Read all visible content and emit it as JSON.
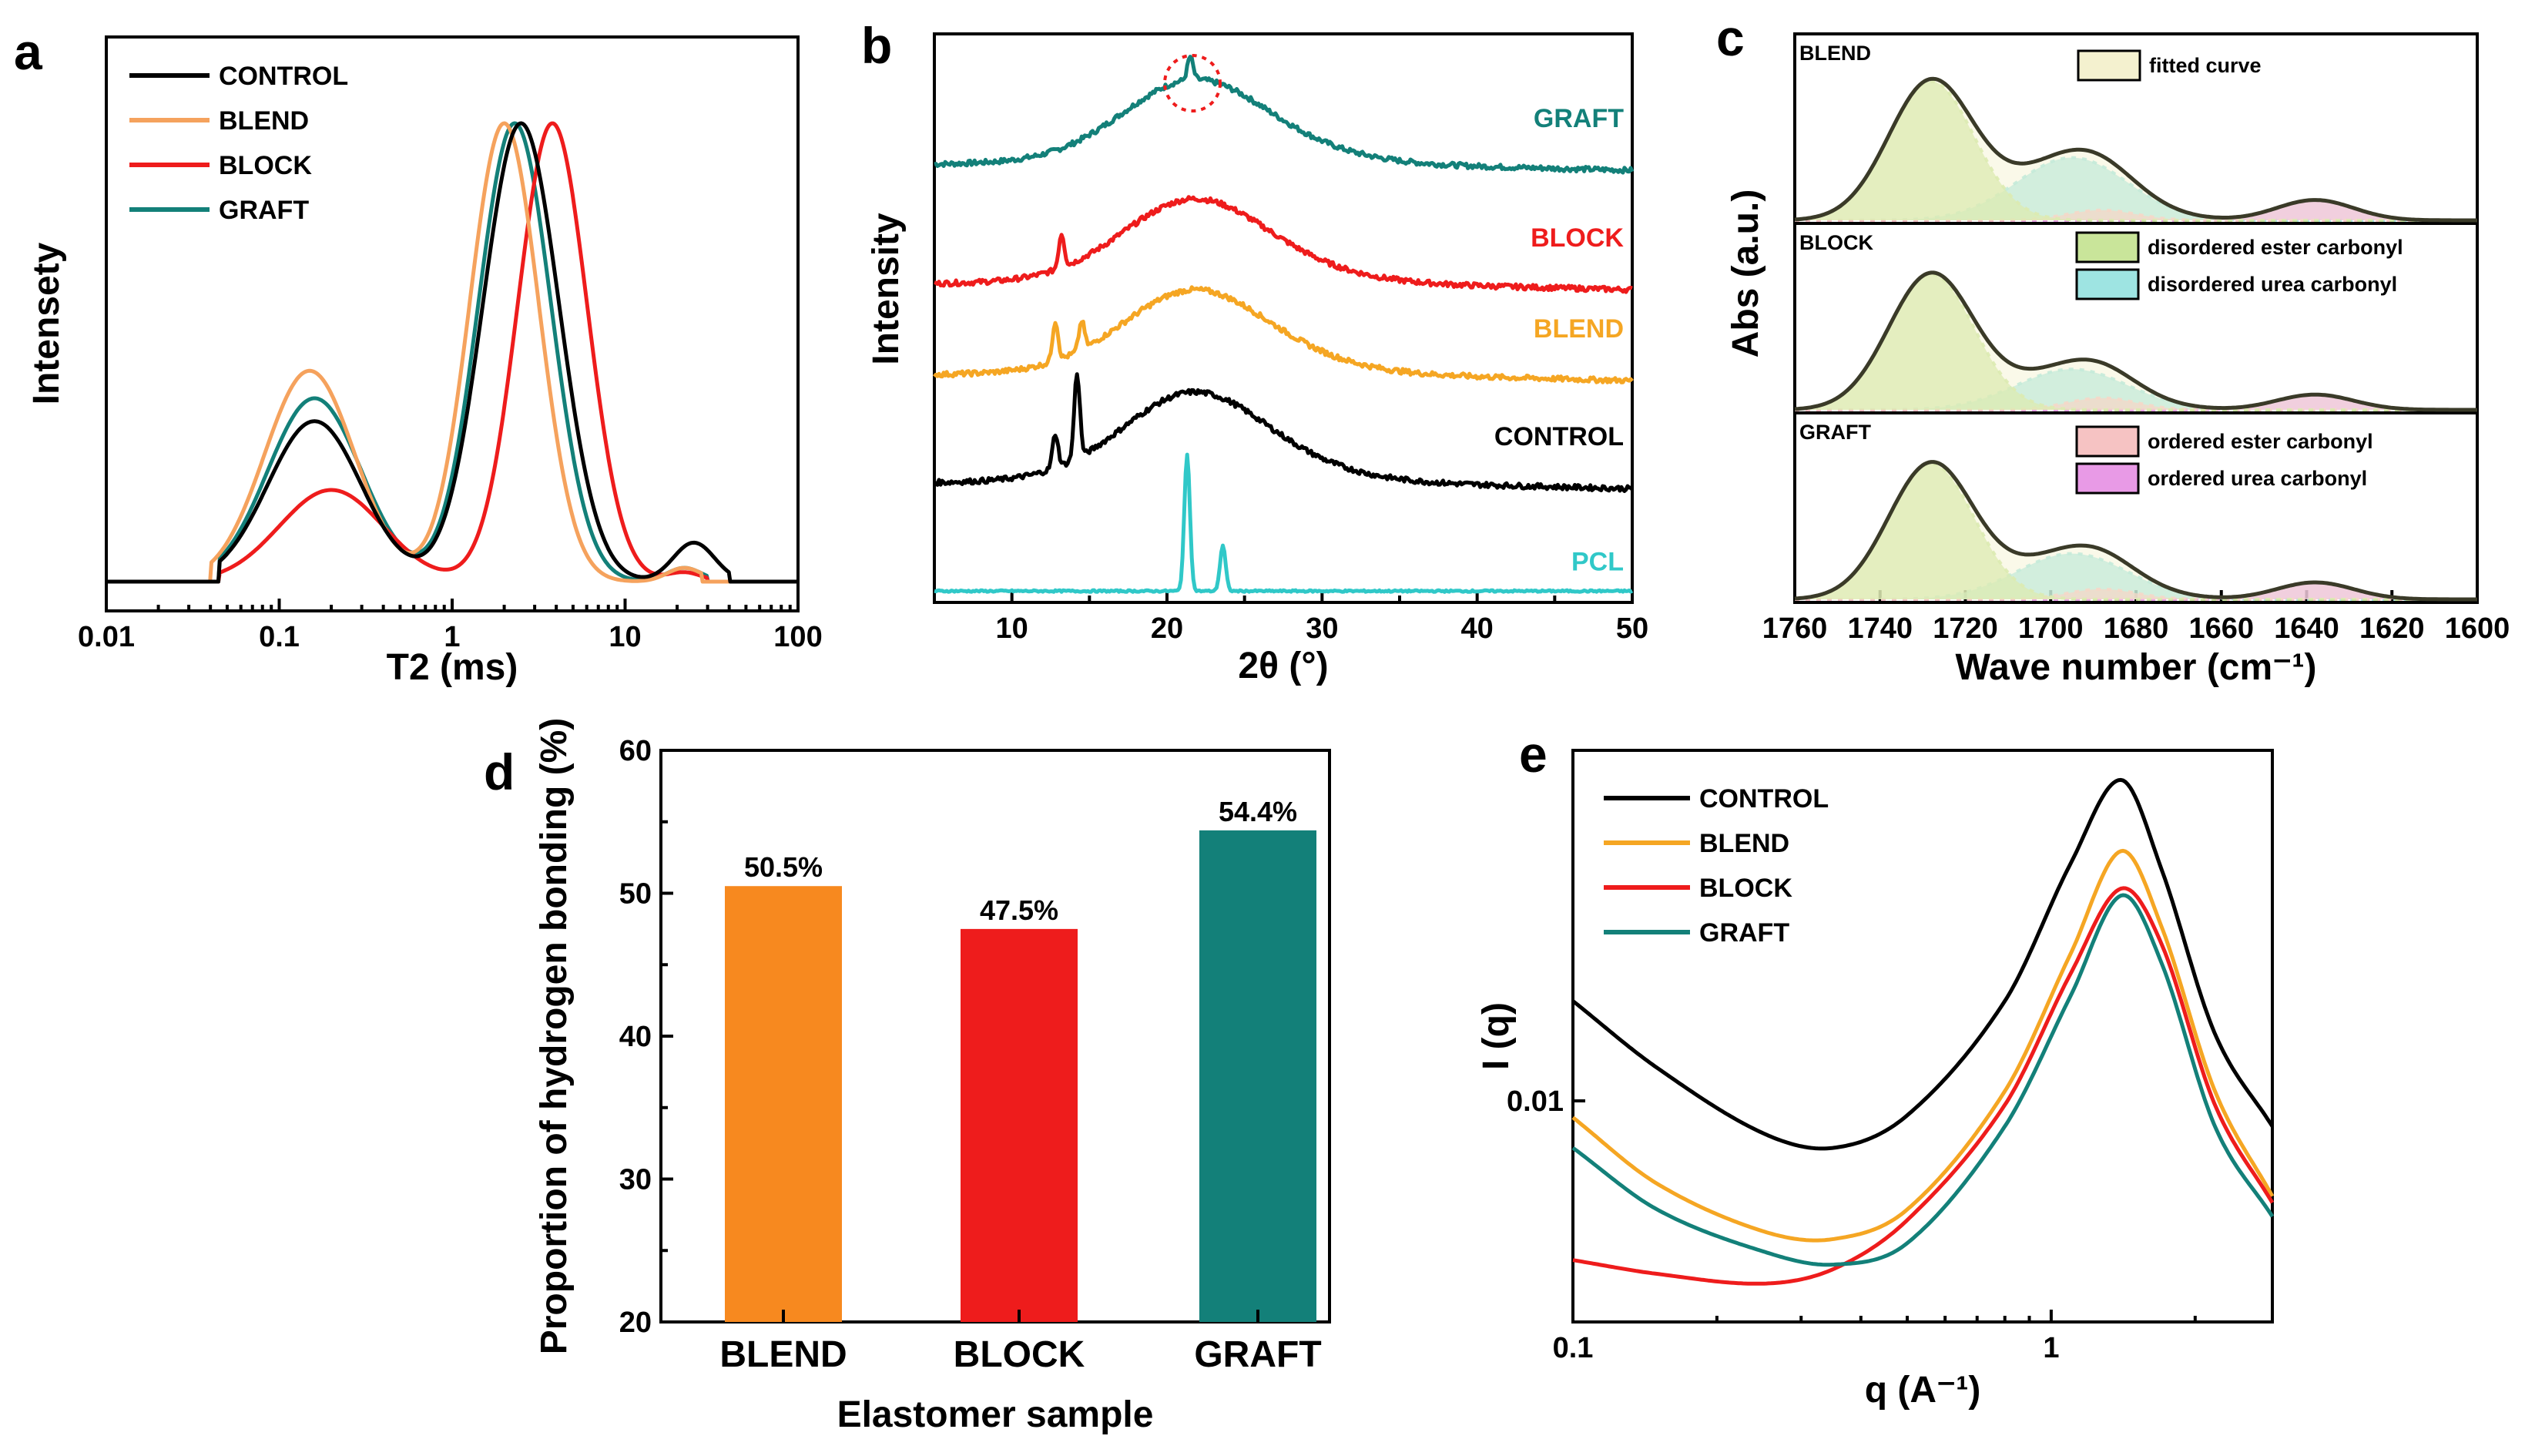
{
  "colors": {
    "control": "#000000",
    "blend_a": "#f5a25d",
    "blend": "#f5a623",
    "blend_bar": "#f7891f",
    "block": "#ee1c1c",
    "graft": "#138079",
    "pcl": "#30c8c8",
    "disordered_ester": "#c9e59a",
    "disordered_urea": "#9ee4e2",
    "ordered_ester": "#f6c3c3",
    "ordered_urea": "#e89ae6",
    "fitted": "#f4f1cf"
  },
  "panels": {
    "a": {
      "label": "a"
    },
    "b": {
      "label": "b"
    },
    "c": {
      "label": "c"
    },
    "d": {
      "label": "d"
    },
    "e": {
      "label": "e"
    }
  },
  "chart_data": [
    {
      "panel": "a",
      "type": "line",
      "xscale": "log",
      "xlabel": "T2 (ms)",
      "ylabel": "Intensety",
      "xlim": [
        0.01,
        100
      ],
      "ylim": [
        0,
        1
      ],
      "xticks": [
        "0.01",
        "0.1",
        "1",
        "10",
        "100"
      ],
      "legend": [
        "CONTROL",
        "BLEND",
        "BLOCK",
        "GRAFT"
      ],
      "legend_position": "top-left",
      "series": [
        {
          "name": "CONTROL",
          "color_key": "control",
          "peaks": [
            {
              "center": 0.16,
              "height": 0.35,
              "width": 0.27
            },
            {
              "center": 2.5,
              "height": 1.0,
              "width": 0.22
            },
            {
              "center": 25,
              "height": 0.085,
              "width": 0.12
            }
          ],
          "xmin": 0.045,
          "xmax": 40
        },
        {
          "name": "BLEND",
          "color_key": "blend_a",
          "peaks": [
            {
              "center": 0.15,
              "height": 0.46,
              "width": 0.26
            },
            {
              "center": 2.0,
              "height": 1.0,
              "width": 0.2
            },
            {
              "center": 22,
              "height": 0.03,
              "width": 0.1
            }
          ],
          "xmin": 0.04,
          "xmax": 28
        },
        {
          "name": "BLOCK",
          "color_key": "block",
          "peaks": [
            {
              "center": 0.2,
              "height": 0.2,
              "width": 0.3
            },
            {
              "center": 3.8,
              "height": 1.0,
              "width": 0.2
            },
            {
              "center": 22,
              "height": 0.02,
              "width": 0.1
            }
          ],
          "xmin": 0.045,
          "xmax": 30
        },
        {
          "name": "GRAFT",
          "color_key": "graft",
          "peaks": [
            {
              "center": 0.16,
              "height": 0.4,
              "width": 0.27
            },
            {
              "center": 2.3,
              "height": 1.0,
              "width": 0.21
            },
            {
              "center": 22,
              "height": 0.03,
              "width": 0.1
            }
          ],
          "xmin": 0.045,
          "xmax": 30
        }
      ]
    },
    {
      "panel": "b",
      "type": "line",
      "xlabel": "2θ (°)",
      "ylabel": "Intensity",
      "xlim": [
        5,
        50
      ],
      "xticks": [
        "10",
        "20",
        "30",
        "40",
        "50"
      ],
      "annotation": "dotted circle at GRAFT peak (2θ ≈ 21.5°)",
      "series": [
        {
          "name": "GRAFT",
          "color_key": "graft",
          "offset": 0.76,
          "amorphous_height": 0.13,
          "sharp_peaks": [
            [
              21.5,
              0.04
            ]
          ]
        },
        {
          "name": "BLOCK",
          "color_key": "block",
          "offset": 0.55,
          "amorphous_height": 0.13,
          "sharp_peaks": [
            [
              13.2,
              0.06
            ]
          ]
        },
        {
          "name": "BLEND",
          "color_key": "blend",
          "offset": 0.39,
          "amorphous_height": 0.13,
          "sharp_peaks": [
            [
              12.8,
              0.07
            ],
            [
              14.5,
              0.05
            ]
          ]
        },
        {
          "name": "CONTROL",
          "color_key": "control",
          "offset": 0.2,
          "amorphous_height": 0.14,
          "sharp_peaks": [
            [
              14.2,
              0.15
            ],
            [
              12.8,
              0.06
            ]
          ]
        },
        {
          "name": "PCL",
          "color_key": "pcl",
          "offset": 0.02,
          "amorphous_height": 0.0,
          "sharp_peaks": [
            [
              21.3,
              0.24
            ],
            [
              23.6,
              0.08
            ]
          ]
        }
      ]
    },
    {
      "panel": "c",
      "type": "area",
      "xlabel": "Wave number (cm⁻¹)",
      "ylabel": "Abs (a.u.)",
      "xlim": [
        1760,
        1600
      ],
      "xticks": [
        "1760",
        "1740",
        "1720",
        "1700",
        "1680",
        "1660",
        "1640",
        "1620",
        "1600"
      ],
      "legend": [
        "fitted curve",
        "disordered ester carbonyl",
        "disordered urea carbonyl",
        "ordered ester carbonyl",
        "ordered urea carbonyl"
      ],
      "components": {
        "disordered_ester": {
          "center": 1728,
          "width": 10
        },
        "disordered_urea": {
          "center": 1695,
          "width": 13
        },
        "ordered_ester": {
          "center": 1688,
          "width": 8
        },
        "ordered_urea": {
          "center": 1638,
          "width": 9
        }
      },
      "subplots": [
        {
          "name": "BLEND",
          "amplitudes": {
            "disordered_ester": 0.82,
            "disordered_urea": 0.37,
            "ordered_ester": 0.06,
            "ordered_urea": 0.12
          }
        },
        {
          "name": "BLOCK",
          "amplitudes": {
            "disordered_ester": 0.8,
            "disordered_urea": 0.24,
            "ordered_ester": 0.07,
            "ordered_urea": 0.09
          }
        },
        {
          "name": "GRAFT",
          "amplitudes": {
            "disordered_ester": 0.8,
            "disordered_urea": 0.27,
            "ordered_ester": 0.06,
            "ordered_urea": 0.1
          }
        }
      ]
    },
    {
      "panel": "d",
      "type": "bar",
      "categories": [
        "BLEND",
        "BLOCK",
        "GRAFT"
      ],
      "values": [
        50.5,
        47.5,
        54.4
      ],
      "value_labels": [
        "50.5%",
        "47.5%",
        "54.4%"
      ],
      "bar_color_keys": [
        "blend_bar",
        "block",
        "graft"
      ],
      "xlabel": "Elastomer sample",
      "ylabel": "Proportion of hydrogen bonding (%)",
      "ylim": [
        20,
        60
      ],
      "yticks": [
        "20",
        "30",
        "40",
        "50",
        "60"
      ]
    },
    {
      "panel": "e",
      "type": "line",
      "xscale": "log",
      "yscale": "log",
      "xlabel": "q (A⁻¹)",
      "ylabel": "I (q)",
      "xlim": [
        0.1,
        2.9
      ],
      "ylim": [
        0.0033,
        0.058
      ],
      "xticks": [
        "0.1",
        "1"
      ],
      "yticks": [
        "0.01"
      ],
      "legend": [
        "CONTROL",
        "BLEND",
        "BLOCK",
        "GRAFT"
      ],
      "legend_position": "top-left",
      "series": [
        {
          "name": "CONTROL",
          "color_key": "control",
          "q": [
            0.1,
            0.15,
            0.25,
            0.35,
            0.5,
            0.8,
            1.1,
            1.4,
            1.7,
            2.2,
            2.9
          ],
          "i": [
            0.0165,
            0.0118,
            0.0085,
            0.0079,
            0.0093,
            0.0165,
            0.033,
            0.05,
            0.032,
            0.014,
            0.0088
          ]
        },
        {
          "name": "BLEND",
          "color_key": "blend",
          "q": [
            0.1,
            0.15,
            0.25,
            0.35,
            0.5,
            0.8,
            1.1,
            1.4,
            1.7,
            2.2,
            2.9
          ],
          "i": [
            0.0092,
            0.0066,
            0.0052,
            0.005,
            0.0058,
            0.0105,
            0.021,
            0.035,
            0.024,
            0.0105,
            0.0062
          ]
        },
        {
          "name": "BLOCK",
          "color_key": "block",
          "q": [
            0.1,
            0.15,
            0.25,
            0.35,
            0.5,
            0.8,
            1.1,
            1.4,
            1.7,
            2.2,
            2.9
          ],
          "i": [
            0.0045,
            0.0042,
            0.004,
            0.0043,
            0.0055,
            0.0098,
            0.019,
            0.029,
            0.022,
            0.0098,
            0.006
          ]
        },
        {
          "name": "GRAFT",
          "color_key": "graft",
          "q": [
            0.1,
            0.15,
            0.25,
            0.35,
            0.5,
            0.8,
            1.1,
            1.4,
            1.7,
            2.2,
            2.9
          ],
          "i": [
            0.0079,
            0.0058,
            0.0047,
            0.0044,
            0.0049,
            0.0088,
            0.017,
            0.028,
            0.02,
            0.0088,
            0.0056
          ]
        }
      ]
    }
  ]
}
